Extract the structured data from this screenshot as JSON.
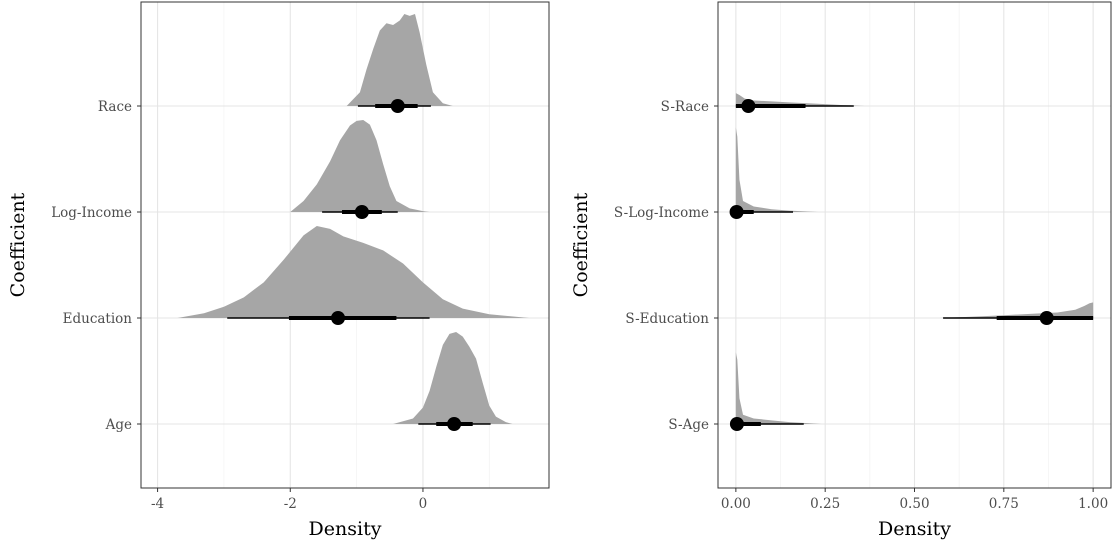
{
  "chart_data": [
    {
      "type": "halfeye",
      "xlabel": "Density",
      "ylabel": "Coefficient",
      "xlim": [
        -4.25,
        1.9
      ],
      "x_ticks": [
        -4,
        -2,
        0
      ],
      "x_tick_labels": [
        "-4",
        "-2",
        "0"
      ],
      "grid": true,
      "density_color": "#a6a6a6",
      "categories": [
        "Age",
        "Education",
        "Log-Income",
        "Race"
      ],
      "series": [
        {
          "category": "Age",
          "point": 0.47,
          "interval_66": [
            0.2,
            0.75
          ],
          "interval_95": [
            -0.07,
            1.02
          ],
          "density": [
            [
              -0.45,
              0
            ],
            [
              -0.15,
              0.06
            ],
            [
              0.0,
              0.18
            ],
            [
              0.1,
              0.36
            ],
            [
              0.2,
              0.62
            ],
            [
              0.3,
              0.86
            ],
            [
              0.4,
              0.98
            ],
            [
              0.5,
              1.0
            ],
            [
              0.6,
              0.95
            ],
            [
              0.7,
              0.84
            ],
            [
              0.8,
              0.71
            ],
            [
              0.9,
              0.45
            ],
            [
              1.0,
              0.2
            ],
            [
              1.1,
              0.08
            ],
            [
              1.25,
              0.02
            ],
            [
              1.35,
              0
            ]
          ]
        },
        {
          "category": "Education",
          "point": -1.28,
          "interval_66": [
            -2.02,
            -0.4
          ],
          "interval_95": [
            -2.95,
            0.1
          ],
          "density": [
            [
              -3.7,
              0
            ],
            [
              -3.3,
              0.05
            ],
            [
              -3.0,
              0.12
            ],
            [
              -2.7,
              0.22
            ],
            [
              -2.4,
              0.38
            ],
            [
              -2.1,
              0.62
            ],
            [
              -1.8,
              0.88
            ],
            [
              -1.6,
              0.98
            ],
            [
              -1.4,
              0.95
            ],
            [
              -1.2,
              0.87
            ],
            [
              -0.9,
              0.8
            ],
            [
              -0.6,
              0.72
            ],
            [
              -0.3,
              0.58
            ],
            [
              0.0,
              0.38
            ],
            [
              0.3,
              0.2
            ],
            [
              0.6,
              0.1
            ],
            [
              1.0,
              0.04
            ],
            [
              1.6,
              0
            ]
          ]
        },
        {
          "category": "Log-Income",
          "point": -0.92,
          "interval_66": [
            -1.22,
            -0.62
          ],
          "interval_95": [
            -1.52,
            -0.38
          ],
          "density": [
            [
              -2.0,
              0
            ],
            [
              -1.8,
              0.12
            ],
            [
              -1.6,
              0.3
            ],
            [
              -1.4,
              0.55
            ],
            [
              -1.25,
              0.78
            ],
            [
              -1.1,
              0.94
            ],
            [
              -1.0,
              0.99
            ],
            [
              -0.9,
              1.0
            ],
            [
              -0.8,
              0.95
            ],
            [
              -0.7,
              0.78
            ],
            [
              -0.6,
              0.52
            ],
            [
              -0.5,
              0.28
            ],
            [
              -0.4,
              0.12
            ],
            [
              -0.2,
              0.04
            ],
            [
              0.0,
              0.01
            ],
            [
              0.1,
              0
            ]
          ]
        },
        {
          "category": "Race",
          "point": -0.38,
          "interval_66": [
            -0.72,
            -0.08
          ],
          "interval_95": [
            -0.98,
            0.12
          ],
          "density": [
            [
              -1.15,
              0
            ],
            [
              -0.95,
              0.15
            ],
            [
              -0.85,
              0.4
            ],
            [
              -0.75,
              0.62
            ],
            [
              -0.65,
              0.82
            ],
            [
              -0.55,
              0.9
            ],
            [
              -0.45,
              0.88
            ],
            [
              -0.35,
              0.93
            ],
            [
              -0.28,
              1.0
            ],
            [
              -0.2,
              0.98
            ],
            [
              -0.12,
              1.0
            ],
            [
              -0.05,
              0.8
            ],
            [
              0.05,
              0.45
            ],
            [
              0.15,
              0.15
            ],
            [
              0.3,
              0.03
            ],
            [
              0.45,
              0
            ]
          ]
        }
      ]
    },
    {
      "type": "halfeye",
      "xlabel": "Density",
      "ylabel": "Coefficient",
      "xlim": [
        -0.05,
        1.05
      ],
      "x_ticks": [
        0,
        0.25,
        0.5,
        0.75,
        1
      ],
      "x_tick_labels": [
        "0.00",
        "0.25",
        "0.50",
        "0.75",
        "1.00"
      ],
      "grid": true,
      "density_color": "#a6a6a6",
      "categories": [
        "S-Age",
        "S-Education",
        "S-Log-Income",
        "S-Race"
      ],
      "series": [
        {
          "category": "S-Age",
          "point": 0.003,
          "interval_66": [
            0.0,
            0.07
          ],
          "interval_95": [
            0.0,
            0.19
          ],
          "density": [
            [
              0.0,
              0
            ],
            [
              0.0,
              0.78
            ],
            [
              0.004,
              0.7
            ],
            [
              0.01,
              0.28
            ],
            [
              0.02,
              0.1
            ],
            [
              0.05,
              0.06
            ],
            [
              0.1,
              0.04
            ],
            [
              0.15,
              0.02
            ],
            [
              0.2,
              0.01
            ],
            [
              0.24,
              0
            ]
          ]
        },
        {
          "category": "S-Education",
          "point": 0.87,
          "interval_66": [
            0.73,
            1.0
          ],
          "interval_95": [
            0.58,
            1.0
          ],
          "density": [
            [
              0.57,
              0
            ],
            [
              0.65,
              0.012
            ],
            [
              0.75,
              0.03
            ],
            [
              0.85,
              0.05
            ],
            [
              0.9,
              0.06
            ],
            [
              0.95,
              0.09
            ],
            [
              0.975,
              0.13
            ],
            [
              0.99,
              0.16
            ],
            [
              1.0,
              0.17
            ],
            [
              1.0,
              0
            ]
          ]
        },
        {
          "category": "S-Log-Income",
          "point": 0.002,
          "interval_66": [
            0.0,
            0.05
          ],
          "interval_95": [
            0.0,
            0.16
          ],
          "density": [
            [
              0.0,
              0
            ],
            [
              0.0,
              0.92
            ],
            [
              0.004,
              0.82
            ],
            [
              0.01,
              0.35
            ],
            [
              0.02,
              0.12
            ],
            [
              0.05,
              0.06
            ],
            [
              0.1,
              0.03
            ],
            [
              0.15,
              0.015
            ],
            [
              0.2,
              0.005
            ],
            [
              0.23,
              0
            ]
          ]
        },
        {
          "category": "S-Race",
          "point": 0.035,
          "interval_66": [
            0.0,
            0.195
          ],
          "interval_95": [
            0.0,
            0.33
          ],
          "density": [
            [
              0.0,
              0
            ],
            [
              0.0,
              0.14
            ],
            [
              0.01,
              0.12
            ],
            [
              0.025,
              0.08
            ],
            [
              0.05,
              0.06
            ],
            [
              0.1,
              0.05
            ],
            [
              0.15,
              0.04
            ],
            [
              0.2,
              0.03
            ],
            [
              0.25,
              0.02
            ],
            [
              0.3,
              0.01
            ],
            [
              0.36,
              0
            ]
          ]
        }
      ]
    }
  ]
}
